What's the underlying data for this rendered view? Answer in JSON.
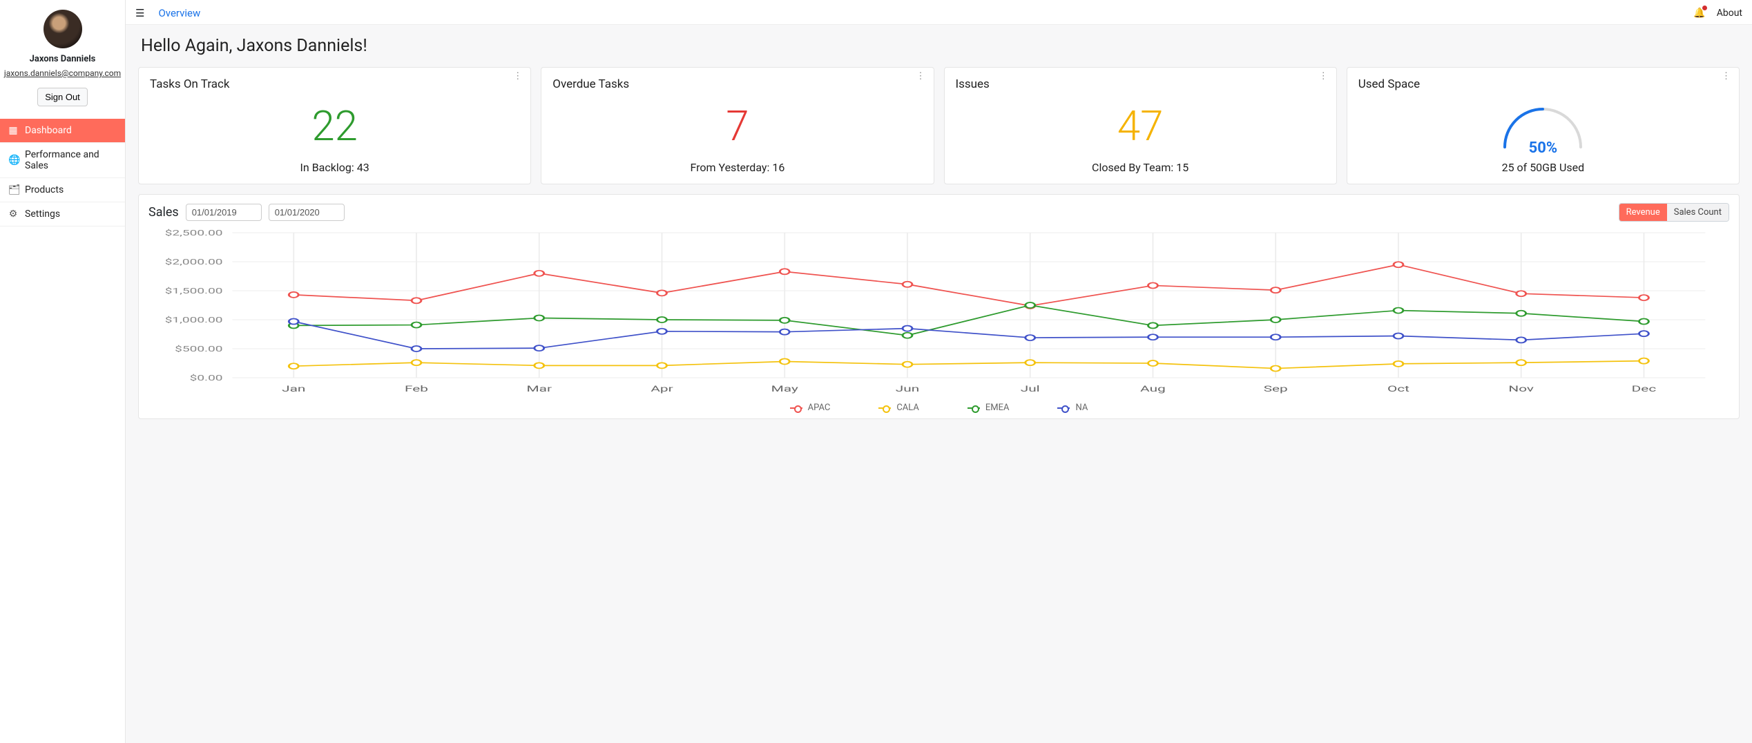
{
  "user": {
    "name": "Jaxons Danniels",
    "email": "jaxons.danniels@company.com",
    "signout_label": "Sign Out"
  },
  "nav": {
    "items": [
      {
        "icon": "grid",
        "label": "Dashboard",
        "active": true
      },
      {
        "icon": "globe",
        "label": "Performance and Sales",
        "active": false
      },
      {
        "icon": "layers",
        "label": "Products",
        "active": false
      },
      {
        "icon": "gear",
        "label": "Settings",
        "active": false
      }
    ]
  },
  "topbar": {
    "breadcrumb": "Overview",
    "about_label": "About"
  },
  "greeting": "Hello Again, Jaxons Danniels!",
  "cards": [
    {
      "title": "Tasks On Track",
      "value": "22",
      "value_color": "#2e9b2e",
      "footer": "In Backlog: 43"
    },
    {
      "title": "Overdue Tasks",
      "value": "7",
      "value_color": "#e53935",
      "footer": "From Yesterday: 16"
    },
    {
      "title": "Issues",
      "value": "47",
      "value_color": "#f5b301",
      "footer": "Closed By Team: 15"
    }
  ],
  "space_card": {
    "title": "Used Space",
    "percent_label": "50%",
    "percent_value": 0.5,
    "arc_color": "#1a73e8",
    "track_color": "#d9d9d9",
    "footer": "25 of 50GB Used"
  },
  "sales": {
    "title": "Sales",
    "date_from": "01/01/2019",
    "date_to": "01/01/2020",
    "segmented": {
      "options": [
        "Revenue",
        "Sales Count"
      ],
      "active_index": 0
    },
    "chart": {
      "type": "line",
      "x_labels": [
        "Jan",
        "Feb",
        "Mar",
        "Apr",
        "May",
        "Jun",
        "Jul",
        "Aug",
        "Sep",
        "Oct",
        "Nov",
        "Dec"
      ],
      "y_min": 0,
      "y_max": 2500,
      "y_tick_step": 500,
      "y_tick_format_prefix": "$",
      "y_tick_format_decimals": 2,
      "grid_color": "#ececec",
      "background_color": "#ffffff",
      "marker_radius": 4,
      "line_width": 1.7,
      "series": [
        {
          "name": "APAC",
          "color": "#ef5350",
          "values": [
            1430,
            1330,
            1800,
            1460,
            1830,
            1610,
            1240,
            1590,
            1510,
            1950,
            1450,
            1380
          ]
        },
        {
          "name": "CALA",
          "color": "#f4c20d",
          "values": [
            200,
            260,
            210,
            210,
            280,
            230,
            260,
            250,
            160,
            240,
            260,
            290
          ]
        },
        {
          "name": "EMEA",
          "color": "#2e9b2e",
          "values": [
            900,
            910,
            1030,
            1000,
            990,
            730,
            1250,
            900,
            1000,
            1160,
            1110,
            970
          ]
        },
        {
          "name": "NA",
          "color": "#3f51c9",
          "values": [
            970,
            500,
            510,
            800,
            790,
            850,
            690,
            700,
            700,
            720,
            650,
            760
          ]
        }
      ]
    }
  },
  "colors": {
    "primary_accent": "#ff6b5b",
    "link": "#1a73e8"
  }
}
